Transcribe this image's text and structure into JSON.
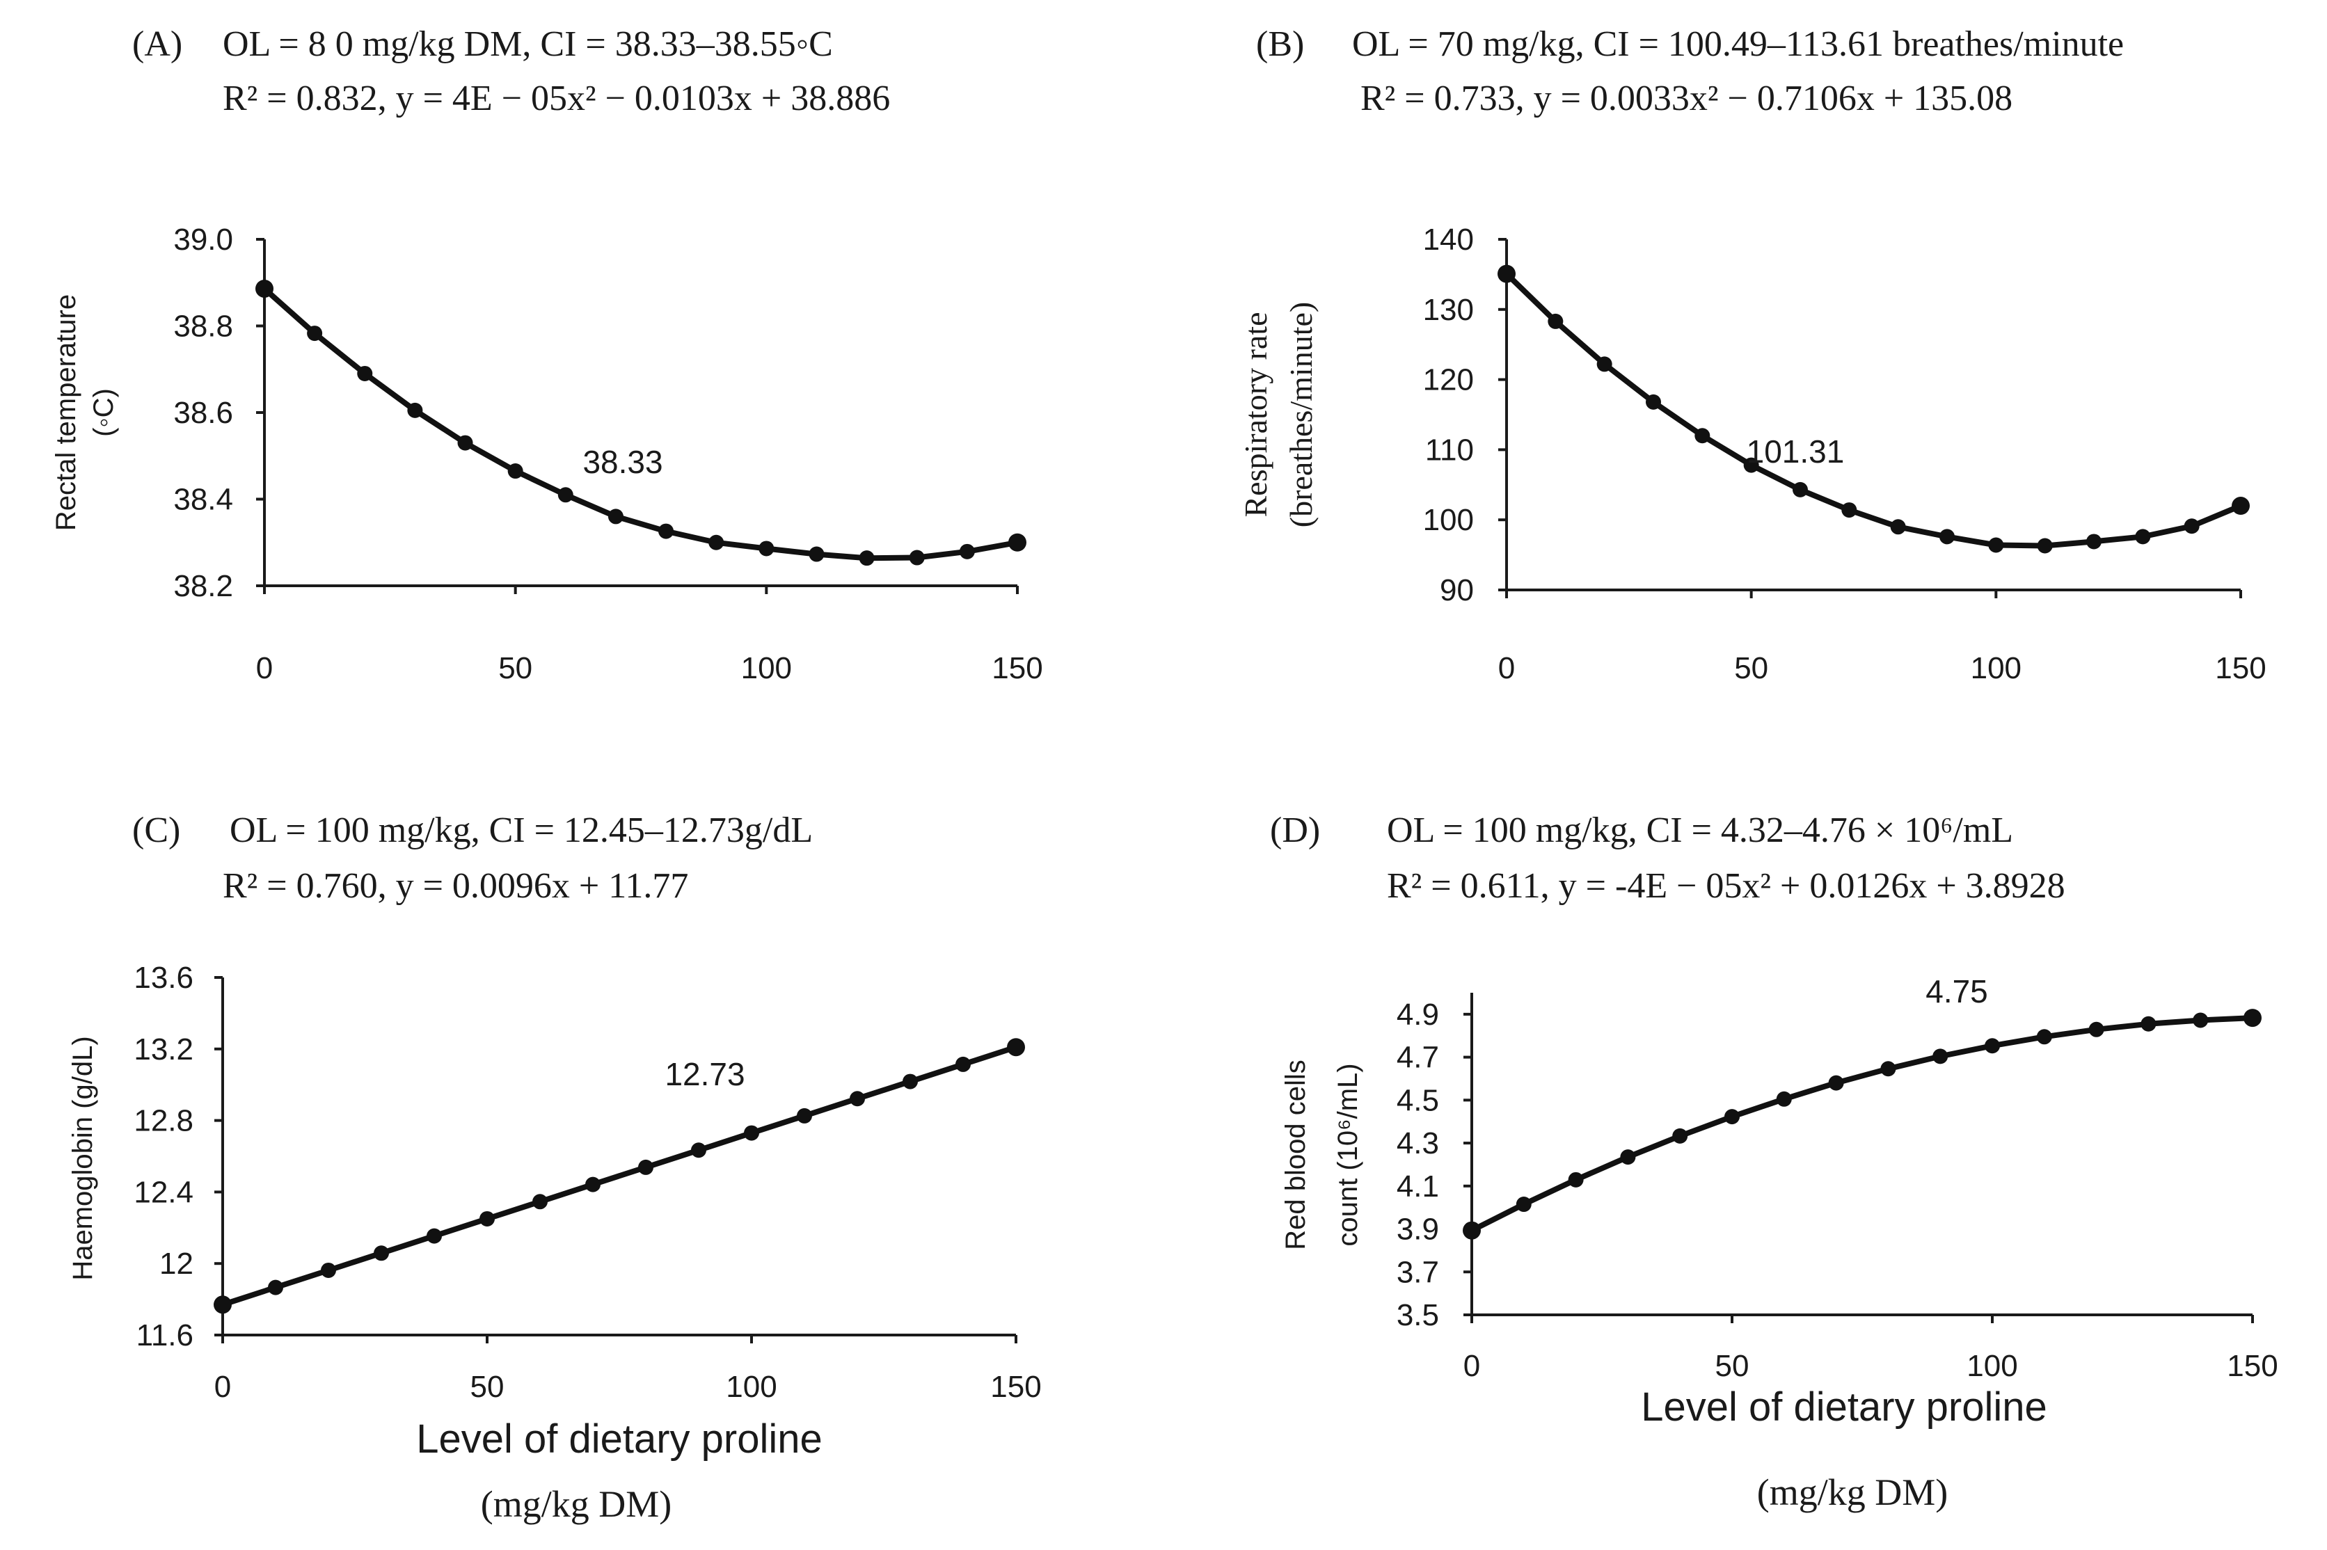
{
  "colors": {
    "ink": "#111111",
    "axis": "#1a1a1a",
    "background": "#ffffff"
  },
  "chart_data": [
    {
      "panel": "A",
      "type": "line",
      "label": "(A)",
      "header_line1": "OL = 8 0 mg/kg DM, CI = 38.33–38.55◦C",
      "header_line2": "R² = 0.832, y = 4E − 05x² − 0.0103x + 38.886",
      "ylabel_lines": [
        "Rectal temperature",
        "(◦C)"
      ],
      "xlabel": "",
      "xunit": "",
      "annotation": "38.33",
      "x_ticks": [
        "0",
        "50",
        "100",
        "150"
      ],
      "y_ticks": [
        "38.2",
        "38.4",
        "38.6",
        "38.8",
        "39.0"
      ],
      "xlim": [
        0,
        150
      ],
      "ylim": [
        38.2,
        39.0
      ],
      "x": [
        0,
        10,
        20,
        30,
        40,
        50,
        60,
        70,
        80,
        90,
        100,
        110,
        120,
        130,
        140,
        150
      ],
      "y": [
        38.886,
        38.783,
        38.69,
        38.605,
        38.53,
        38.465,
        38.41,
        38.36,
        38.326,
        38.3,
        38.286,
        38.273,
        38.264,
        38.265,
        38.279,
        38.3
      ]
    },
    {
      "panel": "B",
      "type": "line",
      "label": "(B)",
      "header_line1": "OL = 70 mg/kg, CI = 100.49–113.61 breathes/minute",
      "header_line2": "R² = 0.733, y = 0.0033x² − 0.7106x + 135.08",
      "ylabel_lines": [
        "Respiratory rate",
        "(breathes/minute)"
      ],
      "xlabel": "",
      "xunit": "",
      "annotation": "101.31",
      "x_ticks": [
        "0",
        "50",
        "100",
        "150"
      ],
      "y_ticks": [
        "90",
        "100",
        "110",
        "120",
        "130",
        "140"
      ],
      "xlim": [
        0,
        150
      ],
      "ylim": [
        90,
        140
      ],
      "x": [
        0,
        10,
        20,
        30,
        40,
        50,
        60,
        70,
        80,
        90,
        100,
        110,
        120,
        130,
        140,
        150
      ],
      "y": [
        135.08,
        128.3,
        122.2,
        116.8,
        112.0,
        107.8,
        104.3,
        101.4,
        99.0,
        97.6,
        96.4,
        96.3,
        96.9,
        97.6,
        99.1,
        102.0
      ]
    },
    {
      "panel": "C",
      "type": "line",
      "label": "(C)",
      "header_line1": "OL = 100 mg/kg, CI = 12.45–12.73g/dL",
      "header_line2": "R² = 0.760, y = 0.0096x + 11.77",
      "ylabel_lines": [
        "Haemoglobin (g/dL)"
      ],
      "xlabel": "Level of dietary proline",
      "xunit": "(mg/kg DM)",
      "annotation": "12.73",
      "x_ticks": [
        "0",
        "50",
        "100",
        "150"
      ],
      "y_ticks": [
        "11.6",
        "12",
        "12.4",
        "12.8",
        "13.2",
        "13.6"
      ],
      "xlim": [
        0,
        150
      ],
      "ylim": [
        11.6,
        13.6
      ],
      "x": [
        0,
        10,
        20,
        30,
        40,
        50,
        60,
        70,
        80,
        90,
        100,
        110,
        120,
        130,
        140,
        150
      ],
      "y": [
        11.77,
        11.866,
        11.962,
        12.058,
        12.154,
        12.25,
        12.346,
        12.442,
        12.538,
        12.634,
        12.73,
        12.826,
        12.922,
        13.018,
        13.114,
        13.21
      ]
    },
    {
      "panel": "D",
      "type": "line",
      "label": "(D)",
      "header_line1": "OL = 100 mg/kg, CI = 4.32–4.76 × 10⁶/mL",
      "header_line2": "R² = 0.611, y = -4E − 05x² + 0.0126x + 3.8928",
      "ylabel_lines": [
        "Red blood cells",
        "count (10⁶/mL)"
      ],
      "xlabel": "Level of dietary proline",
      "xunit": "(mg/kg DM)",
      "annotation": "4.75",
      "x_ticks": [
        "0",
        "50",
        "100",
        "150"
      ],
      "y_ticks": [
        "3.5",
        "3.7",
        "3.9",
        "4.1",
        "4.3",
        "4.5",
        "4.7",
        "4.9"
      ],
      "xlim": [
        0,
        150
      ],
      "ylim": [
        3.5,
        5.0
      ],
      "x": [
        0,
        10,
        20,
        30,
        40,
        50,
        60,
        70,
        80,
        90,
        100,
        110,
        120,
        130,
        140,
        150
      ],
      "y": [
        3.893,
        4.015,
        4.129,
        4.235,
        4.333,
        4.423,
        4.505,
        4.58,
        4.646,
        4.704,
        4.753,
        4.795,
        4.829,
        4.855,
        4.872,
        4.883
      ]
    }
  ]
}
